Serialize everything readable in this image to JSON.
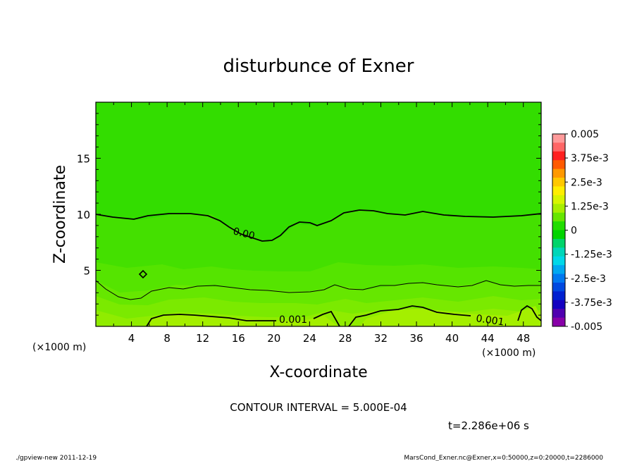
{
  "chart_data": {
    "type": "heatmap",
    "title": "disturbunce of Exner",
    "xlabel": "X-coordinate",
    "ylabel": "Z-coordinate",
    "x_unit_left": "(×1000 m)",
    "x_unit_right": "(×1000 m)",
    "xlim": [
      0,
      50
    ],
    "ylim": [
      0,
      20
    ],
    "x_ticks": [
      "4",
      "8",
      "12",
      "16",
      "20",
      "24",
      "28",
      "32",
      "36",
      "40",
      "44",
      "48"
    ],
    "y_ticks": [
      "5",
      "10",
      "15"
    ],
    "contour_labels": [
      "0.00",
      "0.001",
      "0.001"
    ],
    "colorbar": {
      "labels": [
        "0.005",
        "3.75e-3",
        "2.5e-3",
        "1.25e-3",
        "0",
        "-1.25e-3",
        "-2.5e-3",
        "-3.75e-3",
        "-0.005"
      ],
      "colors": [
        "#ff9a9a",
        "#ff6666",
        "#ff2020",
        "#ff5a00",
        "#ff9900",
        "#ffc800",
        "#ffee00",
        "#d8f500",
        "#a8ee00",
        "#66e600",
        "#22dd00",
        "#00d400",
        "#00d46a",
        "#00d6b8",
        "#00d8e8",
        "#00a8f0",
        "#0078f0",
        "#0048e0",
        "#0020d0",
        "#1400c0",
        "#5000b0",
        "#8800a8"
      ]
    },
    "contour_interval": "CONTOUR INTERVAL = 5.000E-04",
    "time": "t=2.286e+06 s"
  },
  "footer": {
    "left": "./gpview-new  2011-12-19",
    "right": "MarsCond_Exner.nc@Exner,x=0:50000,z=0:20000,t=2286000"
  },
  "colors": {
    "field_top": "#33dd00",
    "field_mid": "#55e400",
    "field_low": "#7bea00",
    "field_bottom": "#a0ee00"
  }
}
